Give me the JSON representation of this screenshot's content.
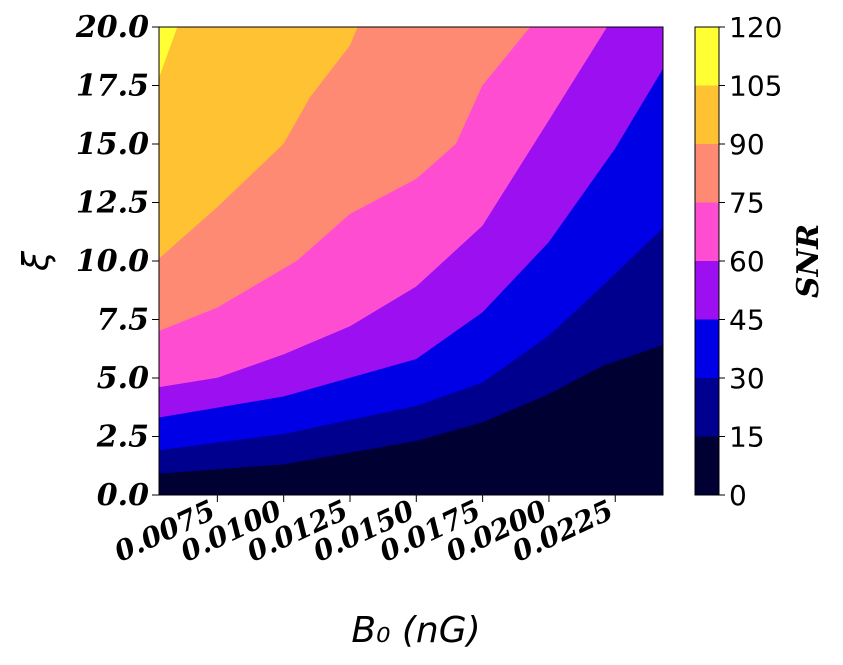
{
  "chart_data": {
    "type": "contourf",
    "xlabel": "B₀ (nG)",
    "ylabel": "ξ",
    "colorbar_label": "SNR",
    "xlim": [
      0.0053,
      0.0243
    ],
    "ylim": [
      0,
      20
    ],
    "x_ticks": [
      "0.0075",
      "0.0100",
      "0.0125",
      "0.0150",
      "0.0175",
      "0.0200",
      "0.0225"
    ],
    "y_ticks": [
      "0.0",
      "2.5",
      "5.0",
      "7.5",
      "10.0",
      "12.5",
      "15.0",
      "17.5",
      "20.0"
    ],
    "levels": [
      0,
      15,
      30,
      45,
      60,
      75,
      90,
      105,
      120
    ],
    "colorbar_ticks": [
      "0",
      "15",
      "30",
      "45",
      "60",
      "75",
      "90",
      "105",
      "120"
    ],
    "colors": [
      "#000033",
      "#00008f",
      "#0000e6",
      "#9b0ff0",
      "#ff4dd2",
      "#ff8a73",
      "#ffc233",
      "#ffff33"
    ],
    "contour_boundaries": [
      {
        "level": 15,
        "points": [
          [
            0.0053,
            0.9
          ],
          [
            0.01,
            1.3
          ],
          [
            0.015,
            2.3
          ],
          [
            0.0175,
            3.1
          ],
          [
            0.02,
            4.3
          ],
          [
            0.022,
            5.5
          ],
          [
            0.0243,
            6.4
          ]
        ]
      },
      {
        "level": 30,
        "points": [
          [
            0.0053,
            1.9
          ],
          [
            0.01,
            2.6
          ],
          [
            0.015,
            3.8
          ],
          [
            0.0175,
            4.8
          ],
          [
            0.02,
            6.8
          ],
          [
            0.022,
            8.9
          ],
          [
            0.0243,
            11.4
          ]
        ]
      },
      {
        "level": 45,
        "points": [
          [
            0.0053,
            3.3
          ],
          [
            0.01,
            4.2
          ],
          [
            0.015,
            5.8
          ],
          [
            0.0175,
            7.8
          ],
          [
            0.02,
            10.8
          ],
          [
            0.0225,
            14.8
          ],
          [
            0.0243,
            18.2
          ]
        ]
      },
      {
        "level": 60,
        "points": [
          [
            0.0053,
            4.6
          ],
          [
            0.0075,
            5.0
          ],
          [
            0.01,
            6.0
          ],
          [
            0.0125,
            7.2
          ],
          [
            0.015,
            8.9
          ],
          [
            0.0175,
            11.5
          ],
          [
            0.02,
            16.0
          ],
          [
            0.0222,
            20.0
          ]
        ]
      },
      {
        "level": 75,
        "points": [
          [
            0.0053,
            7.0
          ],
          [
            0.0075,
            8.0
          ],
          [
            0.0105,
            10.0
          ],
          [
            0.0125,
            12.0
          ],
          [
            0.015,
            13.5
          ],
          [
            0.0165,
            15.0
          ],
          [
            0.0175,
            17.5
          ],
          [
            0.0193,
            20.0
          ]
        ]
      },
      {
        "level": 90,
        "points": [
          [
            0.0053,
            10.1
          ],
          [
            0.0075,
            12.3
          ],
          [
            0.01,
            15.0
          ],
          [
            0.011,
            17.0
          ],
          [
            0.0125,
            19.2
          ],
          [
            0.0128,
            20.0
          ]
        ]
      },
      {
        "level": 105,
        "points": [
          [
            0.0053,
            17.8
          ],
          [
            0.006,
            20.0
          ]
        ]
      }
    ]
  }
}
